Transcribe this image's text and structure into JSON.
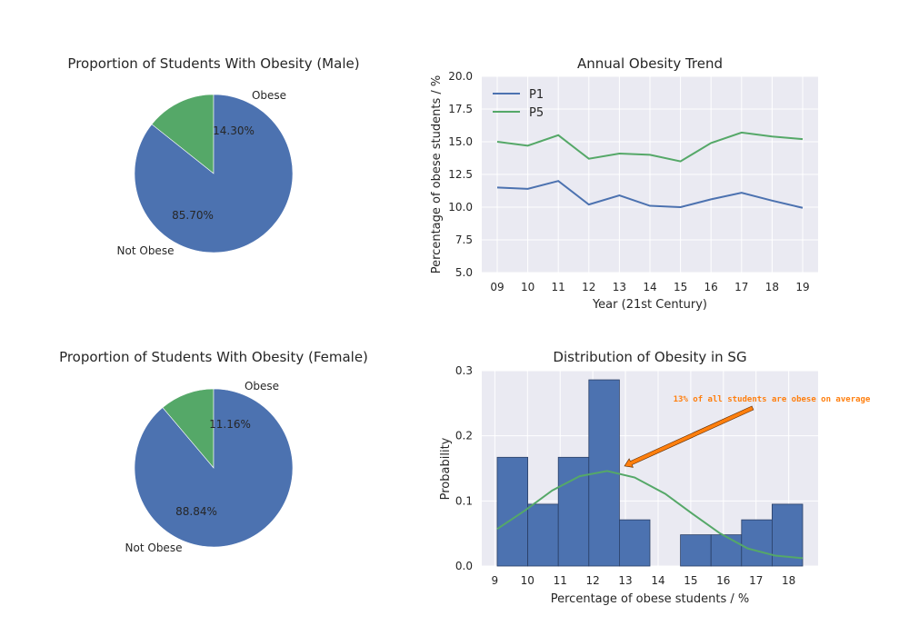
{
  "charts": {
    "pie_male": {
      "title": "Proportion of Students With Obesity (Male)",
      "labels": [
        "Obese",
        "Not Obese"
      ],
      "pcts": [
        "14.30%",
        "85.70%"
      ]
    },
    "pie_female": {
      "title": "Proportion of Students With Obesity (Female)",
      "labels": [
        "Obese",
        "Not Obese"
      ],
      "pcts": [
        "11.16%",
        "88.84%"
      ]
    },
    "line": {
      "title": "Annual Obesity Trend",
      "xlabel": "Year (21st Century)",
      "ylabel": "Percentage of obese students / %"
    },
    "hist": {
      "title": "Distribution of Obesity in SG",
      "xlabel": "Percentage of obese students / %",
      "ylabel": "Probability",
      "annotation": "13% of all students are obese on average"
    }
  },
  "chart_data": [
    {
      "type": "pie",
      "title": "Proportion of Students With Obesity (Male)",
      "labels": [
        "Obese",
        "Not Obese"
      ],
      "values": [
        14.3,
        85.7
      ],
      "colors": [
        "#55a868",
        "#4c72b0"
      ],
      "startangle": 90
    },
    {
      "type": "line",
      "title": "Annual Obesity Trend",
      "xlabel": "Year (21st Century)",
      "ylabel": "Percentage of obese students / %",
      "categories": [
        "09",
        "10",
        "11",
        "12",
        "13",
        "14",
        "15",
        "16",
        "17",
        "18",
        "19"
      ],
      "ylim": [
        5.0,
        20.0
      ],
      "yticks": [
        "5.0",
        "7.5",
        "10.0",
        "12.5",
        "15.0",
        "17.5",
        "20.0"
      ],
      "legend": "top-left",
      "series": [
        {
          "name": "P1",
          "color": "#4c72b0",
          "values": [
            11.5,
            11.4,
            12.0,
            10.2,
            10.9,
            10.1,
            10.0,
            10.6,
            11.1,
            10.5,
            9.95
          ]
        },
        {
          "name": "P5",
          "color": "#55a868",
          "values": [
            15.0,
            14.7,
            15.5,
            13.7,
            14.1,
            14.0,
            13.5,
            14.9,
            15.7,
            15.4,
            15.2
          ]
        }
      ]
    },
    {
      "type": "pie",
      "title": "Proportion of Students With Obesity (Female)",
      "labels": [
        "Obese",
        "Not Obese"
      ],
      "values": [
        11.16,
        88.84
      ],
      "colors": [
        "#55a868",
        "#4c72b0"
      ],
      "startangle": 90
    },
    {
      "type": "bar",
      "title": "Distribution of Obesity in SG",
      "xlabel": "Percentage of obese students / %",
      "ylabel": "Probability",
      "xlim": [
        8.6,
        18.9
      ],
      "ylim": [
        0,
        0.3
      ],
      "xticks": [
        "9",
        "10",
        "11",
        "12",
        "13",
        "14",
        "15",
        "16",
        "17",
        "18"
      ],
      "yticks": [
        "0.0",
        "0.1",
        "0.2",
        "0.3"
      ],
      "bins": [
        9.0,
        10.0,
        11.0,
        12.0,
        13.0,
        14.0,
        15.0,
        16.0,
        17.0,
        18.0,
        19.0
      ],
      "bin_values": [
        0.167,
        0.095,
        0.167,
        0.286,
        0.071,
        0.0,
        0.048,
        0.048,
        0.071,
        0.095
      ],
      "bar_color": "#4c72b0",
      "curve": {
        "color": "#55a868",
        "x": [
          8.9,
          9.8,
          10.7,
          11.6,
          12.5,
          13.4,
          14.4,
          15.3,
          16.2,
          17.1,
          18.0,
          18.9
        ],
        "y": [
          0.057,
          0.085,
          0.116,
          0.138,
          0.146,
          0.136,
          0.111,
          0.08,
          0.05,
          0.027,
          0.016,
          0.012
        ]
      },
      "annotation": {
        "text": "13% of all students are obese on average",
        "color": "#ff7f0e",
        "target": [
          13.0,
          0.155
        ]
      }
    }
  ]
}
